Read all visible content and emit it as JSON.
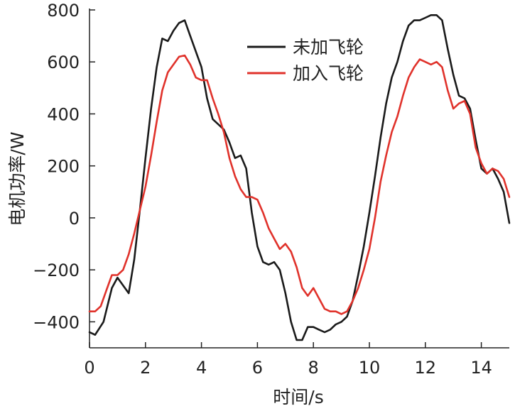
{
  "chart_data": {
    "type": "line",
    "xlabel": "时间/s",
    "ylabel": "电机功率/W",
    "xlim": [
      0,
      15
    ],
    "ylim": [
      -500,
      800
    ],
    "xticks": [
      0,
      2,
      4,
      6,
      8,
      10,
      12,
      14
    ],
    "yticks": [
      -400,
      -200,
      0,
      200,
      400,
      600,
      800
    ],
    "xtick_labels": [
      "0",
      "2",
      "4",
      "6",
      "8",
      "10",
      "12",
      "14"
    ],
    "ytick_labels": [
      "−400",
      "−200",
      "0",
      "200",
      "400",
      "600",
      "800"
    ],
    "grid": false,
    "legend_position": "top-right",
    "series": [
      {
        "name": "未加飞轮",
        "color": "#1a1a1a",
        "x": [
          0,
          0.2,
          0.5,
          0.8,
          1.0,
          1.2,
          1.4,
          1.6,
          1.8,
          2.0,
          2.2,
          2.4,
          2.6,
          2.8,
          3.0,
          3.2,
          3.4,
          3.6,
          3.8,
          4.0,
          4.2,
          4.4,
          4.6,
          4.8,
          5.0,
          5.2,
          5.4,
          5.6,
          5.8,
          6.0,
          6.2,
          6.4,
          6.6,
          6.8,
          7.0,
          7.2,
          7.4,
          7.6,
          7.8,
          8.0,
          8.2,
          8.4,
          8.6,
          8.8,
          9.0,
          9.2,
          9.4,
          9.6,
          9.8,
          10.0,
          10.2,
          10.4,
          10.6,
          10.8,
          11.0,
          11.2,
          11.4,
          11.6,
          11.8,
          12.0,
          12.2,
          12.4,
          12.6,
          12.8,
          13.0,
          13.2,
          13.4,
          13.6,
          13.8,
          14.0,
          14.2,
          14.4,
          14.6,
          14.8,
          15.0
        ],
        "y": [
          -440,
          -450,
          -400,
          -270,
          -230,
          -260,
          -290,
          -160,
          30,
          230,
          420,
          580,
          690,
          680,
          720,
          750,
          760,
          700,
          640,
          580,
          460,
          380,
          360,
          340,
          290,
          230,
          240,
          190,
          20,
          -110,
          -170,
          -180,
          -170,
          -200,
          -290,
          -400,
          -470,
          -470,
          -420,
          -420,
          -430,
          -440,
          -430,
          -410,
          -400,
          -380,
          -320,
          -220,
          -110,
          20,
          160,
          310,
          440,
          540,
          600,
          680,
          740,
          760,
          760,
          770,
          780,
          780,
          760,
          650,
          550,
          470,
          460,
          420,
          300,
          190,
          170,
          190,
          150,
          100,
          -20
        ]
      },
      {
        "name": "加入飞轮",
        "color": "#e0322b",
        "x": [
          0,
          0.2,
          0.4,
          0.6,
          0.8,
          1.0,
          1.2,
          1.4,
          1.6,
          1.8,
          2.0,
          2.2,
          2.4,
          2.6,
          2.8,
          3.0,
          3.2,
          3.4,
          3.6,
          3.8,
          4.0,
          4.2,
          4.4,
          4.6,
          4.8,
          5.0,
          5.2,
          5.4,
          5.6,
          5.8,
          6.0,
          6.2,
          6.4,
          6.6,
          6.8,
          7.0,
          7.2,
          7.4,
          7.6,
          7.8,
          8.0,
          8.2,
          8.4,
          8.6,
          8.8,
          9.0,
          9.2,
          9.4,
          9.6,
          9.8,
          10.0,
          10.2,
          10.4,
          10.6,
          10.8,
          11.0,
          11.2,
          11.4,
          11.6,
          11.8,
          12.0,
          12.2,
          12.4,
          12.6,
          12.8,
          13.0,
          13.2,
          13.4,
          13.6,
          13.8,
          14.0,
          14.2,
          14.4,
          14.6,
          14.8,
          15.0
        ],
        "y": [
          -360,
          -360,
          -340,
          -280,
          -220,
          -220,
          -200,
          -140,
          -60,
          30,
          120,
          240,
          370,
          490,
          560,
          590,
          620,
          625,
          590,
          540,
          530,
          530,
          460,
          400,
          330,
          230,
          160,
          110,
          80,
          80,
          70,
          20,
          -40,
          -80,
          -120,
          -100,
          -130,
          -190,
          -270,
          -300,
          -270,
          -310,
          -350,
          -360,
          -360,
          -370,
          -360,
          -320,
          -270,
          -200,
          -120,
          0,
          140,
          240,
          330,
          390,
          470,
          540,
          580,
          610,
          600,
          590,
          600,
          580,
          490,
          420,
          440,
          450,
          400,
          270,
          210,
          170,
          190,
          180,
          150,
          80
        ]
      }
    ]
  }
}
